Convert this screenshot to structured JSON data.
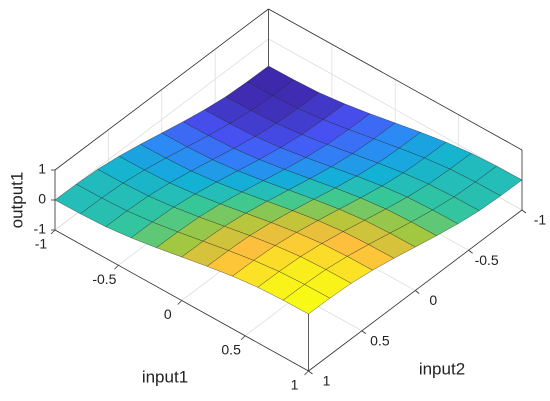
{
  "chart_data": {
    "type": "surface",
    "x_label": "input1",
    "y_label": "input2",
    "z_label": "output1",
    "x": [
      -1,
      -0.8,
      -0.6,
      -0.4,
      -0.2,
      0,
      0.2,
      0.4,
      0.6,
      0.8,
      1
    ],
    "y": [
      -1,
      -0.8,
      -0.6,
      -0.4,
      -0.2,
      0,
      0.2,
      0.4,
      0.6,
      0.8,
      1
    ],
    "z": [
      [
        -0.9,
        -0.89,
        -0.85,
        -0.75,
        -0.61,
        -0.45,
        -0.29,
        -0.15,
        -0.05,
        -0.01,
        0
      ],
      [
        -0.89,
        -0.88,
        -0.84,
        -0.74,
        -0.6,
        -0.44,
        -0.28,
        -0.14,
        -0.04,
        0,
        0.01
      ],
      [
        -0.85,
        -0.84,
        -0.8,
        -0.7,
        -0.56,
        -0.4,
        -0.24,
        -0.1,
        0,
        0.04,
        0.05
      ],
      [
        -0.75,
        -0.74,
        -0.7,
        -0.6,
        -0.46,
        -0.3,
        -0.14,
        0,
        0.1,
        0.14,
        0.15
      ],
      [
        -0.61,
        -0.6,
        -0.56,
        -0.46,
        -0.32,
        -0.16,
        0,
        0.14,
        0.24,
        0.28,
        0.29
      ],
      [
        -0.45,
        -0.44,
        -0.4,
        -0.3,
        -0.16,
        0,
        0.16,
        0.3,
        0.4,
        0.44,
        0.45
      ],
      [
        -0.29,
        -0.28,
        -0.24,
        -0.14,
        0,
        0.16,
        0.32,
        0.46,
        0.56,
        0.6,
        0.61
      ],
      [
        -0.15,
        -0.14,
        -0.1,
        0,
        0.14,
        0.3,
        0.46,
        0.6,
        0.7,
        0.74,
        0.75
      ],
      [
        -0.05,
        -0.04,
        0,
        0.1,
        0.24,
        0.4,
        0.56,
        0.7,
        0.8,
        0.84,
        0.85
      ],
      [
        -0.01,
        0,
        0.04,
        0.14,
        0.28,
        0.44,
        0.6,
        0.74,
        0.84,
        0.88,
        0.89
      ],
      [
        0,
        0.01,
        0.05,
        0.15,
        0.29,
        0.45,
        0.61,
        0.75,
        0.85,
        0.89,
        0.9
      ]
    ],
    "xlim": [
      -1,
      1
    ],
    "ylim": [
      -1,
      1
    ],
    "zlim": [
      -1,
      1
    ],
    "xticks": [
      -1,
      -0.5,
      0,
      0.5,
      1
    ],
    "yticks": [
      -1,
      -0.5,
      0,
      0.5,
      1
    ],
    "zticks": [
      -1,
      0,
      1
    ],
    "grid": true
  }
}
